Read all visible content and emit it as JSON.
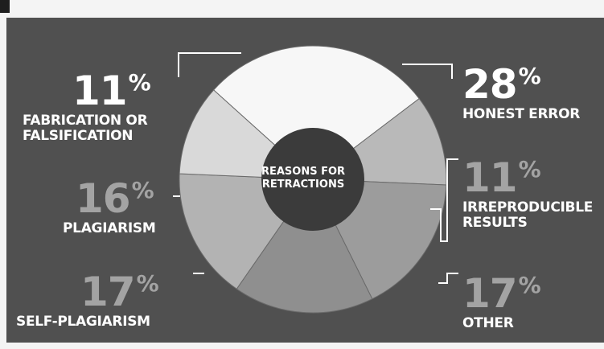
{
  "chart_data": {
    "type": "pie",
    "donut": true,
    "center_label_lines": [
      "REASONS FOR",
      "RETRACTIONS"
    ],
    "slices": [
      {
        "label_lines": [
          "HONEST ERROR"
        ],
        "value": 28,
        "display": "28",
        "fill": "#f7f7f7"
      },
      {
        "label_lines": [
          "IRREPRODUCIBLE",
          "RESULTS"
        ],
        "value": 11,
        "display": "11",
        "fill": "#b9b9b9"
      },
      {
        "label_lines": [
          "OTHER"
        ],
        "value": 17,
        "display": "17",
        "fill": "#9c9c9c"
      },
      {
        "label_lines": [
          "SELF-PLAGIARISM"
        ],
        "value": 17,
        "display": "17",
        "fill": "#8f8f8f"
      },
      {
        "label_lines": [
          "PLAGIARISM"
        ],
        "value": 16,
        "display": "16",
        "fill": "#b3b3b3"
      },
      {
        "label_lines": [
          "FABRICATION OR",
          "FALSIFICATION"
        ],
        "value": 11,
        "display": "11",
        "fill": "#d9d9d9"
      }
    ],
    "percent_sign": "%"
  },
  "colors": {
    "panel": "#505050",
    "hole": "#3b3b3b",
    "leader": "#ffffff",
    "highlight_text": "#ffffff",
    "dim_text": "#a3a3a3"
  }
}
